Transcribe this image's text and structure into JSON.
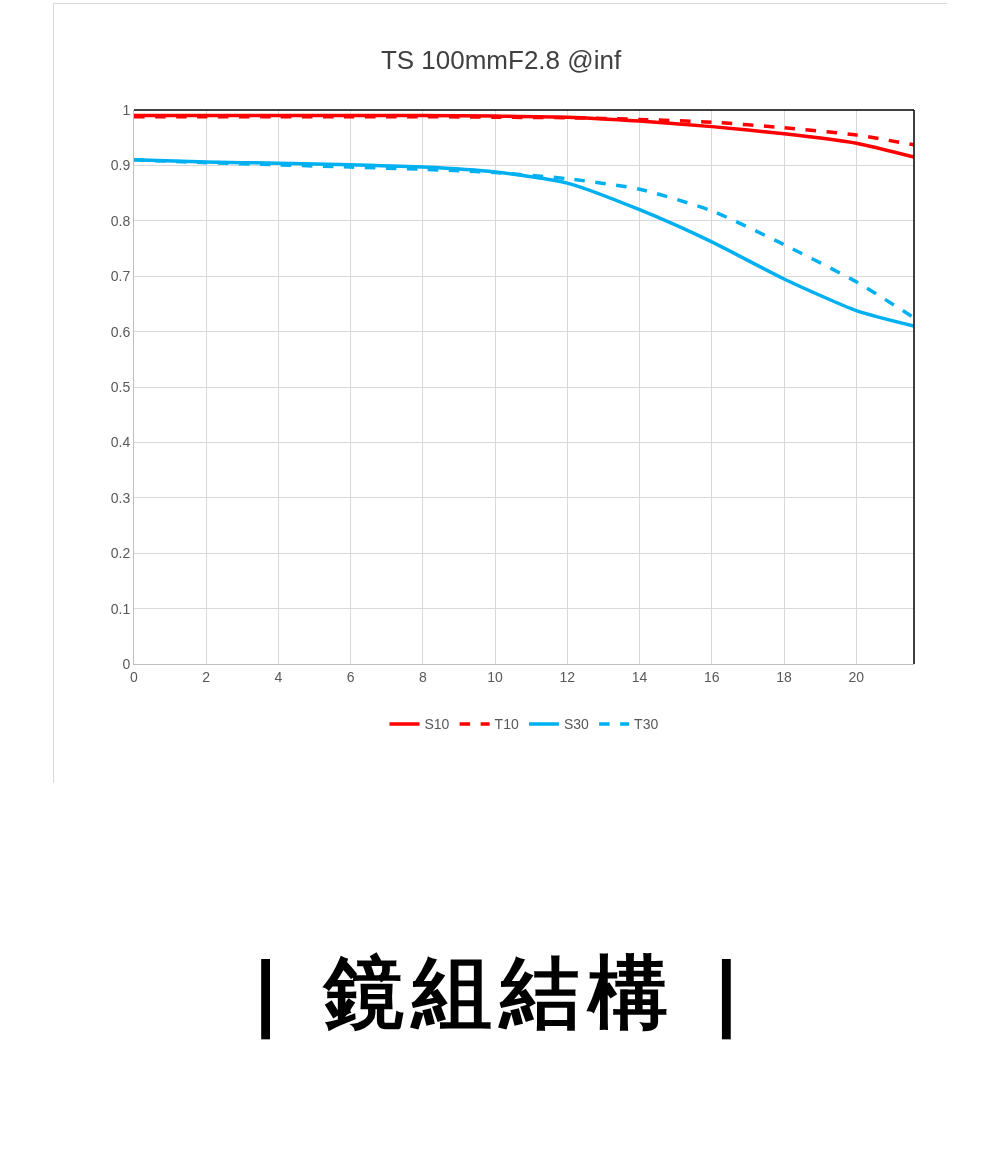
{
  "chart_data": {
    "type": "line",
    "title": "TS 100mmF2.8 @inf",
    "x": [
      0,
      2,
      4,
      6,
      8,
      10,
      12,
      14,
      16,
      18,
      20,
      21.6
    ],
    "series": [
      {
        "name": "S10",
        "color": "#ff0000",
        "line_style": "solid",
        "values": [
          0.99,
          0.99,
          0.99,
          0.99,
          0.99,
          0.989,
          0.987,
          0.98,
          0.97,
          0.957,
          0.94,
          0.915
        ]
      },
      {
        "name": "T10",
        "color": "#ff0000",
        "line_style": "dashed",
        "values": [
          0.988,
          0.988,
          0.988,
          0.988,
          0.988,
          0.987,
          0.986,
          0.983,
          0.978,
          0.968,
          0.955,
          0.937
        ]
      },
      {
        "name": "S30",
        "color": "#00b0f0",
        "line_style": "solid",
        "values": [
          0.91,
          0.906,
          0.904,
          0.901,
          0.897,
          0.888,
          0.868,
          0.82,
          0.762,
          0.695,
          0.638,
          0.61
        ]
      },
      {
        "name": "T30",
        "color": "#00b0f0",
        "line_style": "dashed",
        "values": [
          0.91,
          0.905,
          0.901,
          0.897,
          0.893,
          0.887,
          0.876,
          0.857,
          0.818,
          0.757,
          0.69,
          0.625
        ]
      }
    ],
    "xlim": [
      0,
      21.6
    ],
    "xticks": [
      0,
      2,
      4,
      6,
      8,
      10,
      12,
      14,
      16,
      18,
      20
    ],
    "ylim": [
      0,
      1
    ],
    "yticks": [
      0,
      0.1,
      0.2,
      0.3,
      0.4,
      0.5,
      0.6,
      0.7,
      0.8,
      0.9,
      1
    ],
    "grid": true,
    "legend": "bottom",
    "marker": "none",
    "annotations": [
      "| 鏡組結構 |"
    ]
  }
}
